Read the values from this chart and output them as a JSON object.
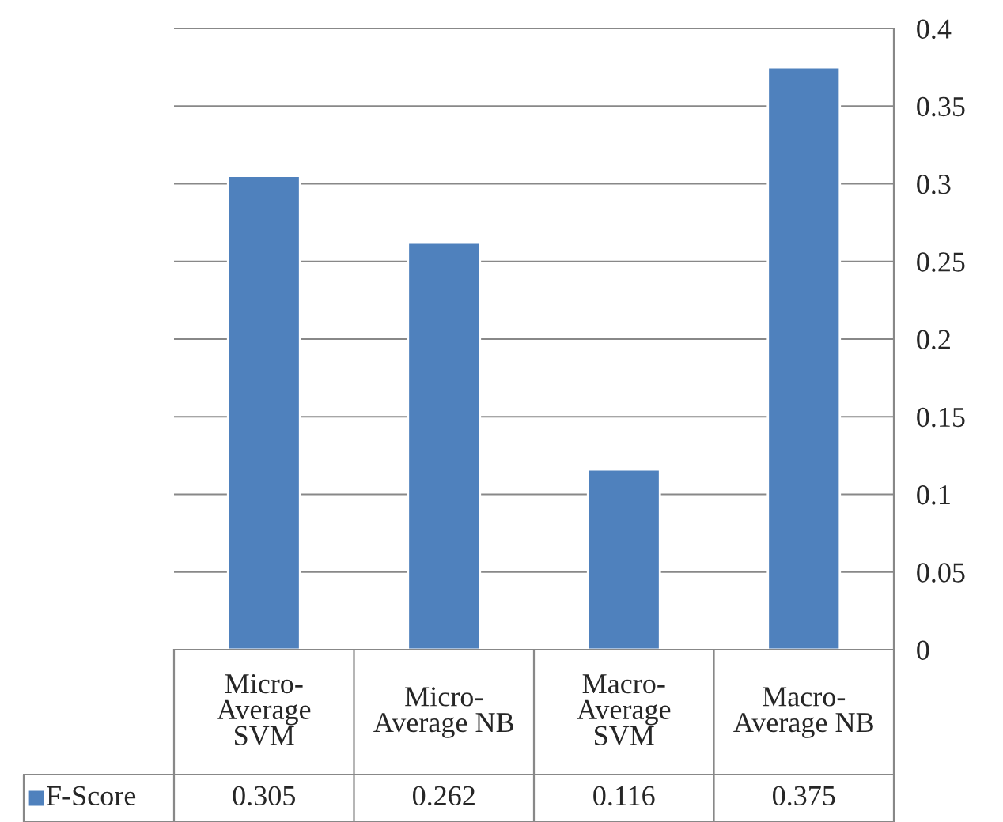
{
  "chart_data": {
    "type": "bar",
    "categories": [
      "Micro-\nAverage\nSVM",
      "Micro-\nAverage NB",
      "Macro-\nAverage\nSVM",
      "Macro-\nAverage NB"
    ],
    "series": [
      {
        "name": "F-Score",
        "color": "#4f81bd",
        "values": [
          0.305,
          0.262,
          0.116,
          0.375
        ]
      }
    ],
    "ylim": [
      0,
      0.4
    ],
    "yticks": [
      0,
      0.05,
      0.1,
      0.15,
      0.2,
      0.25,
      0.3,
      0.35,
      0.4
    ],
    "grid": "y",
    "legend": "bottom",
    "data_labels": true
  }
}
